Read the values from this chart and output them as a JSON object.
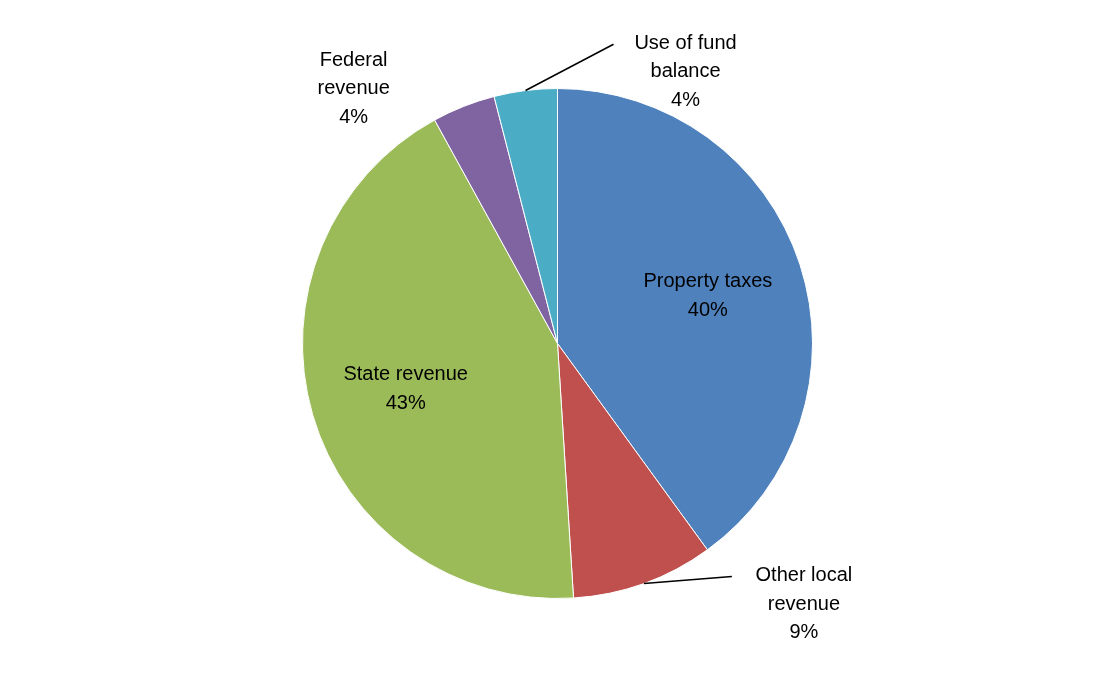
{
  "chart_data": {
    "type": "pie",
    "categories": [
      "Property taxes",
      "Other local revenue",
      "State revenue",
      "Federal revenue",
      "Use of fund balance"
    ],
    "values": [
      40,
      9,
      43,
      4,
      4
    ],
    "colors": [
      "#4f81bd",
      "#c0504d",
      "#9bbb59",
      "#8064a2",
      "#4bacc6"
    ],
    "value_labels": [
      "40%",
      "9%",
      "43%",
      "4%",
      "4%"
    ]
  }
}
